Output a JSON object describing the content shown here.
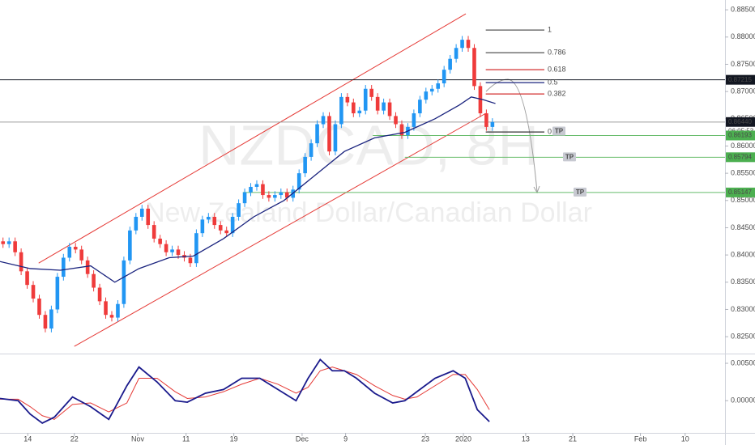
{
  "chart_data": [
    {
      "type": "candlestick",
      "title": "NZDCAD, 8H",
      "subtitle": "New Zealand Dollar/Canadian Dollar",
      "up_color": "#2196f3",
      "down_color": "#ef3b3b",
      "xlim": [
        0,
        120
      ],
      "ylim": [
        0.8219,
        0.8868
      ],
      "xticks": [
        {
          "value": 4.6,
          "label": "14"
        },
        {
          "value": 12.3,
          "label": "22"
        },
        {
          "value": 22.8,
          "label": "Nov"
        },
        {
          "value": 30.8,
          "label": "11"
        },
        {
          "value": 38.7,
          "label": "19"
        },
        {
          "value": 50,
          "label": "Dec"
        },
        {
          "value": 57.2,
          "label": "9"
        },
        {
          "value": 70.4,
          "label": "23"
        },
        {
          "value": 76.7,
          "label": "2020"
        },
        {
          "value": 87,
          "label": "13"
        },
        {
          "value": 94.8,
          "label": "21"
        },
        {
          "value": 106,
          "label": "Feb"
        },
        {
          "value": 113.4,
          "label": "10"
        }
      ],
      "yticks": [
        {
          "value": 0.825,
          "label": "0.82500"
        },
        {
          "value": 0.83,
          "label": "0.83000"
        },
        {
          "value": 0.835,
          "label": "0.83500"
        },
        {
          "value": 0.84,
          "label": "0.84000"
        },
        {
          "value": 0.845,
          "label": "0.84500"
        },
        {
          "value": 0.85,
          "label": "0.85000"
        },
        {
          "value": 0.855,
          "label": "0.85500"
        },
        {
          "value": 0.86,
          "label": "0.86000"
        },
        {
          "value": 0.865,
          "label": "0.86500"
        },
        {
          "value": 0.87,
          "label": "0.87000"
        },
        {
          "value": 0.875,
          "label": "0.87500"
        },
        {
          "value": 0.88,
          "label": "0.88000"
        },
        {
          "value": 0.885,
          "label": "0.88500"
        }
      ],
      "open": [
        0.8425,
        0.842,
        0.8425,
        0.8405,
        0.837,
        0.8345,
        0.832,
        0.829,
        0.8265,
        0.83,
        0.836,
        0.8395,
        0.8415,
        0.841,
        0.839,
        0.8365,
        0.834,
        0.8315,
        0.829,
        0.8285,
        0.831,
        0.839,
        0.8445,
        0.847,
        0.8485,
        0.8455,
        0.843,
        0.842,
        0.8405,
        0.841,
        0.84,
        0.8395,
        0.8385,
        0.844,
        0.8465,
        0.847,
        0.8455,
        0.8445,
        0.844,
        0.847,
        0.8495,
        0.8515,
        0.8525,
        0.853,
        0.851,
        0.8505,
        0.851,
        0.8515,
        0.8505,
        0.852,
        0.855,
        0.858,
        0.8605,
        0.864,
        0.8655,
        0.859,
        0.864,
        0.869,
        0.868,
        0.866,
        0.8665,
        0.8705,
        0.869,
        0.8665,
        0.868,
        0.8655,
        0.864,
        0.862,
        0.8635,
        0.866,
        0.8685,
        0.87,
        0.8705,
        0.8715,
        0.874,
        0.876,
        0.878,
        0.8795,
        0.878,
        0.871,
        0.866,
        0.8635
      ],
      "high": [
        0.8432,
        0.8432,
        0.8432,
        0.8412,
        0.8377,
        0.8352,
        0.8327,
        0.8297,
        0.8307,
        0.8367,
        0.8402,
        0.8422,
        0.8422,
        0.8417,
        0.8397,
        0.8372,
        0.8347,
        0.8322,
        0.8297,
        0.8317,
        0.8397,
        0.8452,
        0.8477,
        0.8492,
        0.8492,
        0.8462,
        0.8437,
        0.8427,
        0.8417,
        0.8417,
        0.8407,
        0.8402,
        0.8447,
        0.8472,
        0.8477,
        0.8477,
        0.8462,
        0.8452,
        0.8477,
        0.8502,
        0.8522,
        0.8532,
        0.8537,
        0.8537,
        0.8517,
        0.8517,
        0.8522,
        0.8522,
        0.8527,
        0.8557,
        0.8587,
        0.8612,
        0.8647,
        0.8662,
        0.8662,
        0.8647,
        0.8697,
        0.8697,
        0.8687,
        0.8672,
        0.8712,
        0.8712,
        0.8697,
        0.8687,
        0.8687,
        0.8662,
        0.8647,
        0.8642,
        0.8667,
        0.8692,
        0.8707,
        0.8712,
        0.8722,
        0.8747,
        0.8767,
        0.8787,
        0.8802,
        0.8802,
        0.8787,
        0.8717,
        0.8667,
        0.8651
      ],
      "low": [
        0.8413,
        0.8413,
        0.8398,
        0.8363,
        0.8338,
        0.8313,
        0.8283,
        0.8258,
        0.8258,
        0.8293,
        0.8353,
        0.8388,
        0.8403,
        0.8383,
        0.8358,
        0.8333,
        0.8308,
        0.8283,
        0.8278,
        0.8278,
        0.8303,
        0.8383,
        0.8438,
        0.8463,
        0.8448,
        0.8423,
        0.8413,
        0.8398,
        0.8398,
        0.8393,
        0.8388,
        0.8378,
        0.8378,
        0.8433,
        0.8458,
        0.8448,
        0.8438,
        0.8433,
        0.8433,
        0.8463,
        0.8488,
        0.8508,
        0.8518,
        0.8503,
        0.8498,
        0.8498,
        0.8503,
        0.8498,
        0.8498,
        0.8513,
        0.8543,
        0.8573,
        0.8598,
        0.8633,
        0.8583,
        0.8583,
        0.8633,
        0.8673,
        0.8653,
        0.8653,
        0.8658,
        0.8683,
        0.8658,
        0.8658,
        0.8648,
        0.8633,
        0.8613,
        0.8613,
        0.8628,
        0.8653,
        0.8678,
        0.8693,
        0.8698,
        0.8708,
        0.8733,
        0.8753,
        0.8773,
        0.8773,
        0.8703,
        0.8653,
        0.8628,
        0.8628
      ],
      "close": [
        0.842,
        0.8425,
        0.8405,
        0.837,
        0.8345,
        0.832,
        0.829,
        0.8265,
        0.83,
        0.836,
        0.8395,
        0.8415,
        0.841,
        0.839,
        0.8365,
        0.834,
        0.8315,
        0.829,
        0.8285,
        0.831,
        0.839,
        0.8445,
        0.847,
        0.8485,
        0.8455,
        0.843,
        0.842,
        0.8405,
        0.841,
        0.84,
        0.8395,
        0.8385,
        0.844,
        0.8465,
        0.847,
        0.8455,
        0.8445,
        0.844,
        0.847,
        0.8495,
        0.8515,
        0.8525,
        0.853,
        0.851,
        0.8505,
        0.851,
        0.8515,
        0.8505,
        0.852,
        0.855,
        0.858,
        0.8605,
        0.864,
        0.8655,
        0.859,
        0.864,
        0.869,
        0.868,
        0.866,
        0.8665,
        0.8705,
        0.869,
        0.8665,
        0.868,
        0.8655,
        0.864,
        0.862,
        0.8635,
        0.866,
        0.8685,
        0.87,
        0.8705,
        0.8715,
        0.874,
        0.876,
        0.878,
        0.8795,
        0.878,
        0.871,
        0.866,
        0.8635,
        0.8644
      ],
      "ma": {
        "color": "#1a237e",
        "x": [
          0,
          5,
          10,
          15,
          19,
          23,
          28,
          32,
          37,
          42,
          47,
          52,
          57,
          62,
          67,
          72,
          76,
          78,
          80,
          82
        ],
        "values": [
          0.8388,
          0.8375,
          0.8372,
          0.838,
          0.835,
          0.8375,
          0.8395,
          0.8398,
          0.843,
          0.847,
          0.85,
          0.8545,
          0.859,
          0.8615,
          0.8625,
          0.865,
          0.8675,
          0.869,
          0.8685,
          0.8678
        ]
      },
      "channel": {
        "color": "#e53935",
        "lines": [
          {
            "x": [
              6.4,
              77.1
            ],
            "values": [
              0.83851,
              0.88426
            ]
          },
          {
            "x": [
              12.3,
              80.4
            ],
            "values": [
              0.82322,
              0.86599
            ]
          }
        ]
      },
      "fib": {
        "x": [
          80.4,
          90.1
        ],
        "levels": [
          {
            "ratio": 1,
            "price": 0.88129,
            "color": "#555555"
          },
          {
            "ratio": 0.786,
            "price": 0.87713,
            "color": "#555555"
          },
          {
            "ratio": 0.618,
            "price": 0.87401,
            "color": "#d32f2f"
          },
          {
            "ratio": 0.5,
            "price": 0.87163,
            "color": "#1a237e"
          },
          {
            "ratio": 0.382,
            "price": 0.86955,
            "color": "#d32f2f"
          },
          {
            "ratio": 0,
            "price": 0.86257,
            "color": "#333333"
          }
        ]
      },
      "price_lines": [
        {
          "value": 0.87215,
          "label": "0.87215",
          "color": "#131722",
          "from": 0
        },
        {
          "value": 0.8644,
          "label": "0.86440",
          "color": "#9e9e9e",
          "tag_color": "#131722",
          "from": 0,
          "countdown": "06:05:53"
        },
        {
          "value": 0.86193,
          "label": "0.86193",
          "color": "#66bb6a",
          "tag_color": "#4caf50",
          "from": 61.7,
          "annotation": "TP"
        },
        {
          "value": 0.85794,
          "label": "0.85794",
          "color": "#66bb6a",
          "tag_color": "#4caf50",
          "from": 67,
          "annotation": "TP"
        },
        {
          "value": 0.85147,
          "label": "0.85147",
          "color": "#66bb6a",
          "tag_color": "#4caf50",
          "from": 40.2,
          "annotation": "TP"
        }
      ]
    },
    {
      "type": "line",
      "xlim": [
        0,
        120
      ],
      "ylim": [
        -0.0043,
        0.0063
      ],
      "yticks": [
        {
          "value": 0.005,
          "label": "0.00500"
        },
        {
          "value": 0,
          "label": "0.00000"
        }
      ],
      "x": [
        0,
        3,
        5,
        7,
        9,
        12,
        15,
        18,
        21,
        23,
        26,
        29,
        31,
        34,
        37,
        40,
        43,
        46,
        49,
        51,
        53,
        55,
        57,
        59,
        62,
        65,
        67,
        69,
        72,
        75,
        77,
        79,
        81
      ],
      "series": [
        {
          "color": "#1a1a8c",
          "values": [
            0.0003,
            0.0,
            -0.0018,
            -0.003,
            -0.0022,
            0.0005,
            -0.0008,
            -0.0025,
            0.002,
            0.0045,
            0.0025,
            0.0,
            -0.0002,
            0.001,
            0.0015,
            0.003,
            0.003,
            0.0015,
            0.0,
            0.003,
            0.0055,
            0.004,
            0.004,
            0.003,
            0.001,
            -0.0003,
            0.0,
            0.0012,
            0.003,
            0.004,
            0.003,
            -0.0012,
            -0.0028
          ]
        },
        {
          "color": "#e53935",
          "values": [
            0.0002,
            0.0002,
            -0.0008,
            -0.002,
            -0.0025,
            -0.0005,
            -0.0003,
            -0.0015,
            -0.0003,
            0.003,
            0.003,
            0.0012,
            0.0003,
            0.0005,
            0.0012,
            0.0022,
            0.003,
            0.0022,
            0.001,
            0.0018,
            0.004,
            0.0045,
            0.004,
            0.0035,
            0.002,
            0.0007,
            0.0002,
            0.0005,
            0.002,
            0.0035,
            0.0035,
            0.0015,
            -0.0012
          ]
        }
      ]
    }
  ]
}
